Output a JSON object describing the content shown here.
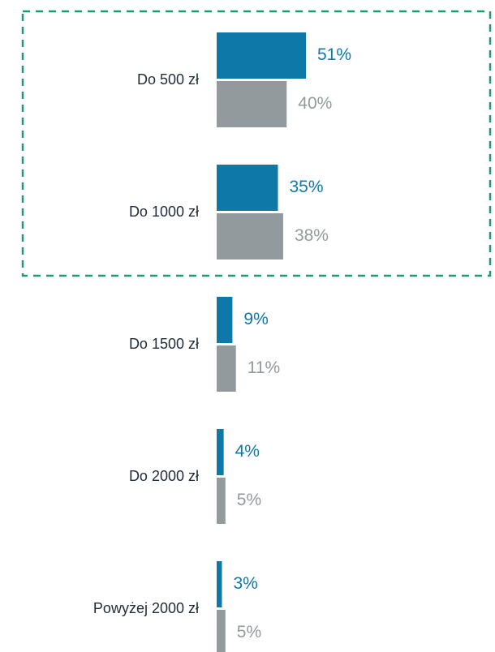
{
  "chart_data": {
    "type": "bar",
    "orientation": "horizontal",
    "categories": [
      "Do 500 zł",
      "Do 1000 zł",
      "Do 1500 zł",
      "Do 2000 zł",
      "Powyżej 2000 zł"
    ],
    "series": [
      {
        "color": "#0e78a8",
        "values": [
          51,
          35,
          9,
          4,
          3
        ],
        "value_labels": [
          "51%",
          "35%",
          "9%",
          "4%",
          "3%"
        ]
      },
      {
        "color": "#939a9e",
        "values": [
          40,
          38,
          11,
          5,
          5
        ],
        "value_labels": [
          "40%",
          "38%",
          "11%",
          "5%",
          "5%"
        ]
      }
    ],
    "grid": false
  }
}
